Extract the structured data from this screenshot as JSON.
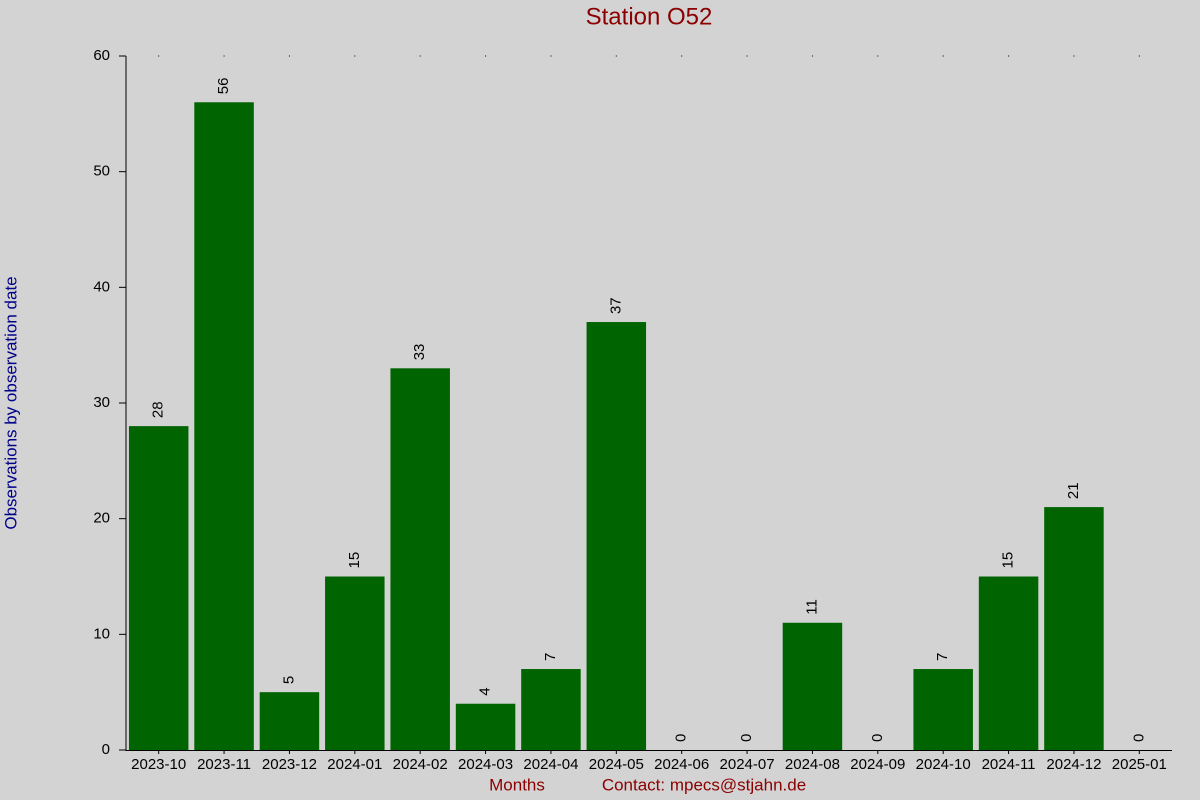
{
  "chart_data": {
    "type": "bar",
    "title": "Station O52",
    "ylabel": "Observations by observation date",
    "xlabel": "Months",
    "note": "Contact: mpecs@stjahn.de",
    "categories": [
      "2023-10",
      "2023-11",
      "2023-12",
      "2024-01",
      "2024-02",
      "2024-03",
      "2024-04",
      "2024-05",
      "2024-06",
      "2024-07",
      "2024-08",
      "2024-09",
      "2024-10",
      "2024-11",
      "2024-12",
      "2025-01"
    ],
    "values": [
      28,
      56,
      5,
      15,
      33,
      4,
      7,
      37,
      0,
      0,
      11,
      0,
      7,
      15,
      21,
      0
    ],
    "color": "#006400",
    "ylim": [
      0,
      60
    ],
    "yticks": [
      0,
      10,
      20,
      30,
      40,
      50,
      60
    ]
  }
}
